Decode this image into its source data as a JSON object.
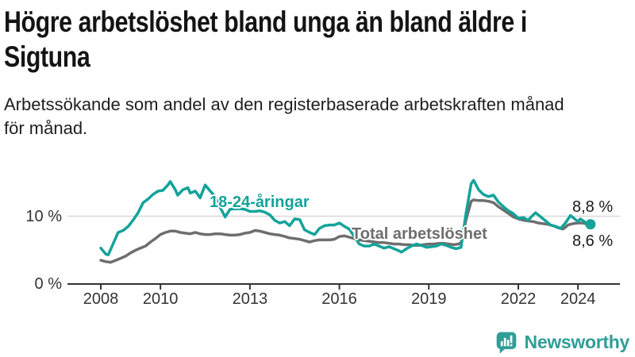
{
  "title": {
    "line1": "Högre arbetslöshet bland unga än bland äldre i",
    "line2": "Sigtuna"
  },
  "subtitle": {
    "line1": "Arbetssökande som andel av den registerbaserade arbetskraften månad",
    "line2": "för månad."
  },
  "logo": {
    "text": "Newsworthy",
    "icon": "newsworthy-chart-bubble-icon"
  },
  "colors": {
    "background": "#ffffff",
    "title": "#141414",
    "text": "#1e1e1e",
    "axis": "#333333",
    "grid": "#d9d9d9",
    "youth": "#13a39a",
    "total": "#6e6e6e",
    "value_label": "#1a1a1a",
    "logo": "#2f9e97"
  },
  "chart_data": {
    "type": "line",
    "title": "Högre arbetslöshet bland unga än bland äldre i Sigtuna",
    "subtitle": "Arbetssökande som andel av den registerbaserade arbetskraften månad för månad.",
    "unit": "%",
    "grid": "horizontal gridline at 10% only",
    "legend": "inline labels on lines",
    "x_axis": {
      "range": [
        2007.9,
        2025.4
      ],
      "ticks": [
        2008,
        2010,
        2013,
        2016,
        2019,
        2022,
        2024
      ]
    },
    "y_axis": {
      "range": [
        0,
        17
      ],
      "ticks": [
        {
          "value": 0,
          "label": "0 %"
        },
        {
          "value": 10,
          "label": "10 %"
        }
      ]
    },
    "end_labels": {
      "youth": "8,8 %",
      "total": "8,6 %"
    },
    "series": [
      {
        "id": "youth",
        "name": "18-24-åringar",
        "color": "#13a39a",
        "latest_value": 8.8,
        "points": [
          [
            2008.0,
            5.3
          ],
          [
            2008.17,
            4.4
          ],
          [
            2008.25,
            4.3
          ],
          [
            2008.42,
            6.0
          ],
          [
            2008.58,
            7.6
          ],
          [
            2008.75,
            7.9
          ],
          [
            2008.92,
            8.5
          ],
          [
            2009.08,
            9.4
          ],
          [
            2009.25,
            10.5
          ],
          [
            2009.42,
            12.0
          ],
          [
            2009.58,
            12.5
          ],
          [
            2009.75,
            13.2
          ],
          [
            2009.92,
            13.7
          ],
          [
            2010.08,
            13.8
          ],
          [
            2010.25,
            14.6
          ],
          [
            2010.33,
            15.1
          ],
          [
            2010.5,
            13.9
          ],
          [
            2010.58,
            13.1
          ],
          [
            2010.75,
            13.9
          ],
          [
            2010.92,
            14.2
          ],
          [
            2011.0,
            13.4
          ],
          [
            2011.17,
            13.7
          ],
          [
            2011.33,
            12.7
          ],
          [
            2011.5,
            14.6
          ],
          [
            2011.67,
            13.7
          ],
          [
            2011.83,
            12.9
          ],
          [
            2012.0,
            11.3
          ],
          [
            2012.17,
            9.9
          ],
          [
            2012.33,
            11.0
          ],
          [
            2012.5,
            11.1
          ],
          [
            2012.67,
            11.1
          ],
          [
            2012.83,
            11.0
          ],
          [
            2013.0,
            10.7
          ],
          [
            2013.17,
            10.7
          ],
          [
            2013.33,
            10.8
          ],
          [
            2013.5,
            10.6
          ],
          [
            2013.67,
            10.2
          ],
          [
            2013.83,
            9.4
          ],
          [
            2014.0,
            9.0
          ],
          [
            2014.17,
            9.2
          ],
          [
            2014.33,
            8.6
          ],
          [
            2014.5,
            9.6
          ],
          [
            2014.67,
            9.5
          ],
          [
            2014.83,
            8.0
          ],
          [
            2015.0,
            7.6
          ],
          [
            2015.17,
            7.3
          ],
          [
            2015.33,
            8.2
          ],
          [
            2015.5,
            8.6
          ],
          [
            2015.67,
            8.7
          ],
          [
            2015.83,
            8.7
          ],
          [
            2016.0,
            9.0
          ],
          [
            2016.17,
            8.5
          ],
          [
            2016.33,
            8.1
          ],
          [
            2016.5,
            7.0
          ],
          [
            2016.67,
            5.9
          ],
          [
            2016.83,
            5.6
          ],
          [
            2017.0,
            5.6
          ],
          [
            2017.17,
            5.9
          ],
          [
            2017.33,
            5.6
          ],
          [
            2017.5,
            5.3
          ],
          [
            2017.67,
            5.5
          ],
          [
            2017.83,
            5.2
          ],
          [
            2018.0,
            4.9
          ],
          [
            2018.08,
            4.7
          ],
          [
            2018.25,
            5.2
          ],
          [
            2018.42,
            5.6
          ],
          [
            2018.58,
            5.9
          ],
          [
            2018.75,
            5.7
          ],
          [
            2018.92,
            5.4
          ],
          [
            2019.08,
            5.5
          ],
          [
            2019.25,
            5.6
          ],
          [
            2019.42,
            5.9
          ],
          [
            2019.58,
            5.7
          ],
          [
            2019.75,
            5.4
          ],
          [
            2019.92,
            5.2
          ],
          [
            2020.08,
            5.4
          ],
          [
            2020.25,
            10.5
          ],
          [
            2020.42,
            14.8
          ],
          [
            2020.5,
            15.3
          ],
          [
            2020.67,
            13.9
          ],
          [
            2020.83,
            13.2
          ],
          [
            2021.0,
            12.9
          ],
          [
            2021.17,
            13.1
          ],
          [
            2021.33,
            12.1
          ],
          [
            2021.5,
            11.4
          ],
          [
            2021.67,
            10.8
          ],
          [
            2021.83,
            10.4
          ],
          [
            2022.0,
            9.7
          ],
          [
            2022.17,
            9.8
          ],
          [
            2022.33,
            9.4
          ],
          [
            2022.5,
            10.2
          ],
          [
            2022.58,
            10.5
          ],
          [
            2022.75,
            9.9
          ],
          [
            2022.92,
            9.3
          ],
          [
            2023.08,
            8.7
          ],
          [
            2023.25,
            8.5
          ],
          [
            2023.42,
            8.2
          ],
          [
            2023.58,
            9.0
          ],
          [
            2023.75,
            10.1
          ],
          [
            2023.92,
            9.5
          ],
          [
            2024.0,
            9.2
          ],
          [
            2024.08,
            9.6
          ],
          [
            2024.25,
            9.1
          ],
          [
            2024.33,
            8.5
          ],
          [
            2024.42,
            8.8
          ]
        ]
      },
      {
        "id": "total",
        "name": "Total arbetslöshet",
        "color": "#6e6e6e",
        "latest_value": 8.6,
        "points": [
          [
            2008.0,
            3.5
          ],
          [
            2008.17,
            3.3
          ],
          [
            2008.33,
            3.2
          ],
          [
            2008.5,
            3.5
          ],
          [
            2008.67,
            3.8
          ],
          [
            2008.83,
            4.1
          ],
          [
            2009.0,
            4.6
          ],
          [
            2009.17,
            5.0
          ],
          [
            2009.33,
            5.3
          ],
          [
            2009.5,
            5.6
          ],
          [
            2009.67,
            6.2
          ],
          [
            2009.83,
            6.7
          ],
          [
            2010.0,
            7.3
          ],
          [
            2010.17,
            7.6
          ],
          [
            2010.33,
            7.8
          ],
          [
            2010.5,
            7.8
          ],
          [
            2010.67,
            7.6
          ],
          [
            2010.83,
            7.5
          ],
          [
            2011.0,
            7.4
          ],
          [
            2011.17,
            7.6
          ],
          [
            2011.33,
            7.4
          ],
          [
            2011.5,
            7.3
          ],
          [
            2011.67,
            7.3
          ],
          [
            2011.83,
            7.4
          ],
          [
            2012.0,
            7.4
          ],
          [
            2012.17,
            7.3
          ],
          [
            2012.33,
            7.2
          ],
          [
            2012.5,
            7.2
          ],
          [
            2012.67,
            7.3
          ],
          [
            2012.83,
            7.5
          ],
          [
            2013.0,
            7.6
          ],
          [
            2013.17,
            7.9
          ],
          [
            2013.33,
            7.8
          ],
          [
            2013.5,
            7.6
          ],
          [
            2013.67,
            7.4
          ],
          [
            2013.83,
            7.3
          ],
          [
            2014.0,
            7.2
          ],
          [
            2014.17,
            7.0
          ],
          [
            2014.33,
            6.8
          ],
          [
            2014.5,
            6.7
          ],
          [
            2014.67,
            6.6
          ],
          [
            2014.83,
            6.4
          ],
          [
            2015.0,
            6.2
          ],
          [
            2015.17,
            6.4
          ],
          [
            2015.33,
            6.5
          ],
          [
            2015.5,
            6.5
          ],
          [
            2015.67,
            6.5
          ],
          [
            2015.83,
            6.6
          ],
          [
            2016.0,
            7.0
          ],
          [
            2016.17,
            7.1
          ],
          [
            2016.33,
            6.9
          ],
          [
            2016.5,
            6.7
          ],
          [
            2016.67,
            6.5
          ],
          [
            2016.83,
            6.4
          ],
          [
            2017.0,
            6.3
          ],
          [
            2017.17,
            6.2
          ],
          [
            2017.33,
            6.1
          ],
          [
            2017.5,
            6.1
          ],
          [
            2017.67,
            6.0
          ],
          [
            2017.83,
            5.9
          ],
          [
            2018.0,
            5.9
          ],
          [
            2018.17,
            5.8
          ],
          [
            2018.33,
            5.8
          ],
          [
            2018.5,
            5.7
          ],
          [
            2018.67,
            5.7
          ],
          [
            2018.83,
            5.8
          ],
          [
            2019.0,
            5.9
          ],
          [
            2019.17,
            5.9
          ],
          [
            2019.33,
            6.0
          ],
          [
            2019.5,
            6.0
          ],
          [
            2019.67,
            5.9
          ],
          [
            2019.83,
            5.8
          ],
          [
            2020.0,
            5.9
          ],
          [
            2020.08,
            6.1
          ],
          [
            2020.25,
            9.5
          ],
          [
            2020.42,
            12.2
          ],
          [
            2020.5,
            12.4
          ],
          [
            2020.67,
            12.3
          ],
          [
            2020.83,
            12.3
          ],
          [
            2021.0,
            12.2
          ],
          [
            2021.17,
            12.0
          ],
          [
            2021.33,
            11.4
          ],
          [
            2021.5,
            10.9
          ],
          [
            2021.67,
            10.4
          ],
          [
            2021.83,
            9.9
          ],
          [
            2022.0,
            9.6
          ],
          [
            2022.17,
            9.4
          ],
          [
            2022.33,
            9.3
          ],
          [
            2022.5,
            9.2
          ],
          [
            2022.67,
            9.0
          ],
          [
            2022.83,
            8.9
          ],
          [
            2023.0,
            8.8
          ],
          [
            2023.17,
            8.6
          ],
          [
            2023.33,
            8.3
          ],
          [
            2023.5,
            8.1
          ],
          [
            2023.67,
            8.7
          ],
          [
            2023.83,
            8.9
          ],
          [
            2024.0,
            9.0
          ],
          [
            2024.17,
            9.0
          ],
          [
            2024.33,
            8.8
          ],
          [
            2024.42,
            8.6
          ]
        ]
      }
    ]
  }
}
